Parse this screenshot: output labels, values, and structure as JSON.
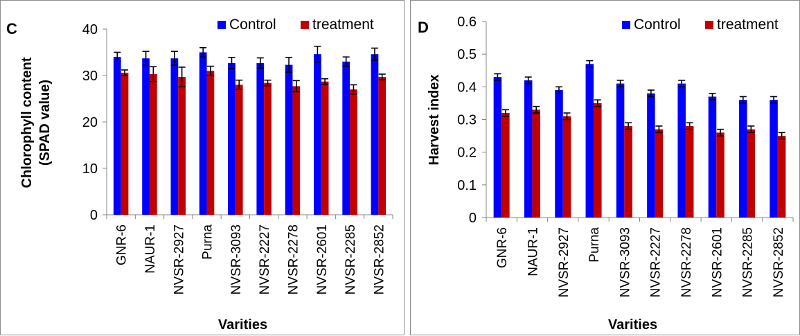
{
  "chart_data": [
    {
      "type": "bar",
      "panel_label": "C",
      "title": "",
      "xlabel": "Varities",
      "ylabel_lines": [
        "Chlorophyll content",
        "(SPAD value)"
      ],
      "ylim": [
        0,
        40
      ],
      "yticks": [
        0,
        10,
        20,
        30,
        40
      ],
      "legend_position": "top-right",
      "categories": [
        "GNR-6",
        "NAUR-1",
        "NVSR-2927",
        "Purna",
        "NVSR-3093",
        "NVSR-2227",
        "NVSR-2278",
        "NVSR-2601",
        "NVSR-2285",
        "NVSR-2852"
      ],
      "series": [
        {
          "name": "Control",
          "color": "#0000ff",
          "values": [
            34.0,
            33.7,
            33.7,
            35.0,
            32.7,
            32.7,
            32.3,
            34.6,
            33.0,
            34.6
          ],
          "errors": [
            1.0,
            1.5,
            1.5,
            1.0,
            1.2,
            1.1,
            1.6,
            1.7,
            1.0,
            1.3
          ]
        },
        {
          "name": "treatment",
          "color": "#c00000",
          "values": [
            30.6,
            30.3,
            29.7,
            31.0,
            28.0,
            28.4,
            27.7,
            28.7,
            27.0,
            29.7
          ],
          "errors": [
            0.6,
            1.6,
            2.1,
            1.0,
            1.0,
            0.6,
            1.2,
            0.6,
            1.0,
            0.6
          ]
        }
      ]
    },
    {
      "type": "bar",
      "panel_label": "D",
      "title": "",
      "xlabel": "Varities",
      "ylabel_lines": [
        "Harvest index"
      ],
      "ylim": [
        0,
        0.6
      ],
      "yticks": [
        "0",
        "0.1",
        "0.2",
        "0.3",
        "0.4",
        "0.5",
        "0.6"
      ],
      "legend_position": "top-right",
      "categories": [
        "GNR-6",
        "NAUR-1",
        "NVSR-2927",
        "Purna",
        "NVSR-3093",
        "NVSR-2227",
        "NVSR-2278",
        "NVSR-2601",
        "NVSR-2285",
        "NVSR-2852"
      ],
      "series": [
        {
          "name": "Control",
          "color": "#0000ff",
          "values": [
            0.43,
            0.42,
            0.39,
            0.47,
            0.41,
            0.38,
            0.41,
            0.37,
            0.36,
            0.36
          ],
          "errors": [
            0.01,
            0.01,
            0.01,
            0.01,
            0.01,
            0.01,
            0.01,
            0.01,
            0.01,
            0.01
          ]
        },
        {
          "name": "treatment",
          "color": "#c00000",
          "values": [
            0.32,
            0.33,
            0.31,
            0.35,
            0.28,
            0.27,
            0.28,
            0.26,
            0.27,
            0.25
          ],
          "errors": [
            0.01,
            0.01,
            0.01,
            0.01,
            0.01,
            0.01,
            0.01,
            0.01,
            0.01,
            0.01
          ]
        }
      ]
    }
  ]
}
